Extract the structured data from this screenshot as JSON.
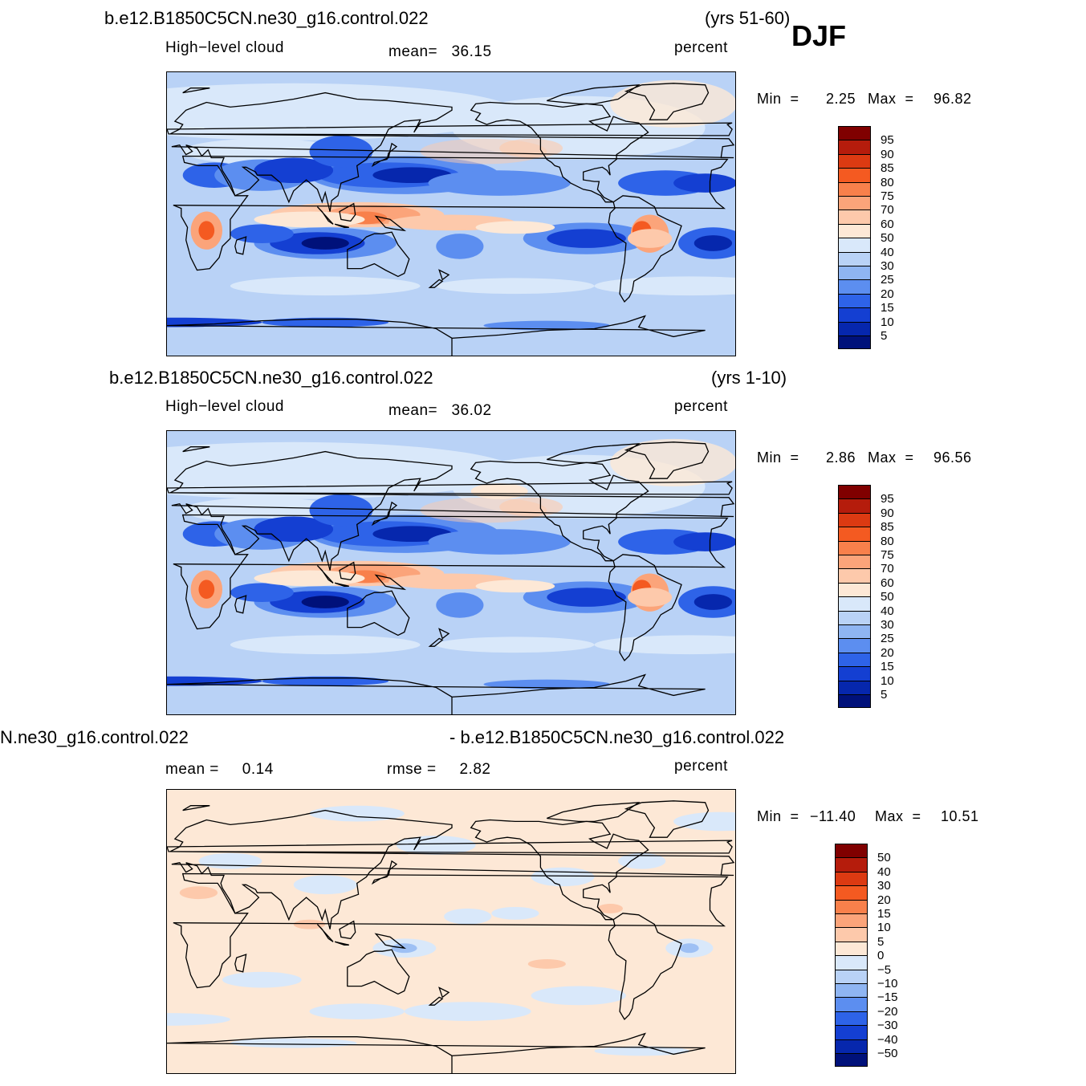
{
  "season": "DJF",
  "panels": [
    {
      "case_name": "b.e12.B1850C5CN.ne30_g16.control.022",
      "years": "(yrs 51-60)",
      "variable": "High−level cloud",
      "mean_text": "mean=   36.15",
      "units": "percent",
      "min_label": "Min  =",
      "min_value": "2.25",
      "max_label": "Max  =",
      "max_value": "96.82",
      "map_kind": "cloud",
      "colorbar": {
        "labels": [
          "95",
          "90",
          "85",
          "80",
          "75",
          "70",
          "60",
          "50",
          "40",
          "30",
          "25",
          "20",
          "15",
          "10",
          "5"
        ],
        "colors": [
          "#800000",
          "#b51c0c",
          "#dc3a12",
          "#f45a21",
          "#f8804b",
          "#fba47a",
          "#fdc9ab",
          "#fde8d6",
          "#d9e8fa",
          "#b9d2f6",
          "#8fb5f2",
          "#5c8ef0",
          "#2e63e8",
          "#143fd2",
          "#0627ad",
          "#00117a"
        ]
      }
    },
    {
      "case_name": "b.e12.B1850C5CN.ne30_g16.control.022",
      "years": "(yrs 1-10)",
      "variable": "High−level cloud",
      "mean_text": "mean=   36.02",
      "units": "percent",
      "min_label": "Min  =",
      "min_value": "2.86",
      "max_label": "Max  =",
      "max_value": "96.56",
      "map_kind": "cloud",
      "colorbar": {
        "labels": [
          "95",
          "90",
          "85",
          "80",
          "75",
          "70",
          "60",
          "50",
          "40",
          "30",
          "25",
          "20",
          "15",
          "10",
          "5"
        ],
        "colors": [
          "#800000",
          "#b51c0c",
          "#dc3a12",
          "#f45a21",
          "#f8804b",
          "#fba47a",
          "#fdc9ab",
          "#fde8d6",
          "#d9e8fa",
          "#b9d2f6",
          "#8fb5f2",
          "#5c8ef0",
          "#2e63e8",
          "#143fd2",
          "#0627ad",
          "#00117a"
        ]
      }
    },
    {
      "left_title": "N.ne30_g16.control.022",
      "right_title": "- b.e12.B1850C5CN.ne30_g16.control.022",
      "mean_text": "mean =     0.14",
      "rmse_text": "rmse =     2.82",
      "units": "percent",
      "min_label": "Min  =",
      "min_value": "−11.40",
      "max_label": "Max  =",
      "max_value": "10.51",
      "map_kind": "diff",
      "colorbar": {
        "labels": [
          "50",
          "40",
          "30",
          "20",
          "15",
          "10",
          "5",
          "0",
          "−5",
          "−10",
          "−15",
          "−20",
          "−30",
          "−40",
          "−50"
        ],
        "colors": [
          "#800000",
          "#b51c0c",
          "#dc3a12",
          "#f45a21",
          "#f8804b",
          "#fba47a",
          "#fdc9ab",
          "#fde8d6",
          "#d9e8fa",
          "#b9d2f6",
          "#8fb5f2",
          "#5c8ef0",
          "#2e63e8",
          "#143fd2",
          "#0627ad",
          "#00117a"
        ]
      }
    }
  ]
}
